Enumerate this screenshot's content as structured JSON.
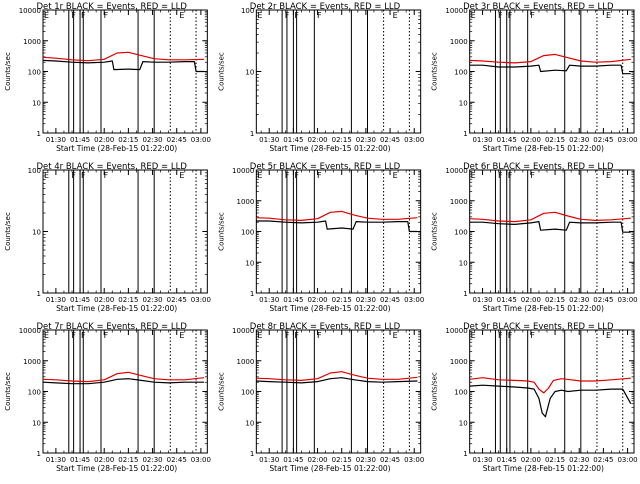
{
  "figure": {
    "xlabel": "Start Time (28-Feb-15 01:22:00)",
    "ylabel": "Counts/sec",
    "x_tick_labels": [
      "01:30",
      "01:45",
      "02:00",
      "02:15",
      "02:30",
      "02:45",
      "03:00"
    ],
    "colors": {
      "events": "#000000",
      "lld": "#e00000",
      "axes": "#000000"
    }
  },
  "chart_data": [
    {
      "type": "line",
      "title": "Det 1r BLACK = Events, RED = LLD",
      "ylog": true,
      "ylim": [
        1,
        10000
      ],
      "y_tick_labels": [
        "1",
        "10",
        "100",
        "1000",
        "10000"
      ],
      "xlim": [
        "01:22",
        "03:04"
      ],
      "flag_labels": [
        {
          "time": "01:22",
          "text": "E"
        },
        {
          "time": "01:39",
          "text": "F"
        },
        {
          "time": "01:45",
          "text": "F"
        },
        {
          "time": "01:59",
          "text": "F"
        },
        {
          "time": "02:46",
          "text": "E"
        }
      ],
      "solid_vlines": [
        "01:38",
        "01:41",
        "01:45",
        "01:47",
        "01:58",
        "02:21",
        "02:31"
      ],
      "dotted_vlines": [
        "02:41",
        "02:57"
      ],
      "series": [
        {
          "name": "Events",
          "x": [
            "01:22",
            "01:30",
            "01:40",
            "01:50",
            "02:00",
            "02:05",
            "02:06",
            "02:15",
            "02:22",
            "02:24",
            "02:31",
            "02:40",
            "02:50",
            "02:56",
            "02:57",
            "03:02"
          ],
          "values": [
            230,
            220,
            200,
            190,
            200,
            220,
            115,
            120,
            115,
            210,
            200,
            200,
            210,
            210,
            100,
            100
          ]
        },
        {
          "name": "LLD",
          "x": [
            "01:22",
            "01:30",
            "01:40",
            "01:50",
            "02:00",
            "02:08",
            "02:15",
            "02:23",
            "02:31",
            "02:40",
            "02:50",
            "03:02"
          ],
          "values": [
            290,
            270,
            240,
            225,
            250,
            400,
            420,
            330,
            260,
            240,
            240,
            250
          ]
        }
      ]
    },
    {
      "type": "line",
      "title": "Det 2r BLACK = Events, RED = LLD",
      "ylog": true,
      "ylim": [
        1,
        100
      ],
      "y_tick_labels": [
        "1",
        "10",
        "100"
      ],
      "xlim": [
        "01:22",
        "03:04"
      ],
      "flag_labels": [
        {
          "time": "01:22",
          "text": "E"
        },
        {
          "time": "01:39",
          "text": "F"
        },
        {
          "time": "01:45",
          "text": "F"
        },
        {
          "time": "01:59",
          "text": "F"
        },
        {
          "time": "02:46",
          "text": "E"
        }
      ],
      "solid_vlines": [
        "01:38",
        "01:41",
        "01:45",
        "01:47",
        "01:58",
        "02:21",
        "02:31"
      ],
      "dotted_vlines": [
        "02:41",
        "02:57"
      ],
      "series": []
    },
    {
      "type": "line",
      "title": "Det 3r BLACK = Events, RED = LLD",
      "ylog": true,
      "ylim": [
        1,
        10000
      ],
      "y_tick_labels": [
        "1",
        "10",
        "100",
        "1000",
        "10000"
      ],
      "xlim": [
        "01:22",
        "03:04"
      ],
      "flag_labels": [
        {
          "time": "01:22",
          "text": "E"
        },
        {
          "time": "01:39",
          "text": "F"
        },
        {
          "time": "01:45",
          "text": "F"
        },
        {
          "time": "01:59",
          "text": "F"
        },
        {
          "time": "02:46",
          "text": "E"
        }
      ],
      "solid_vlines": [
        "01:38",
        "01:41",
        "01:45",
        "01:47",
        "01:58",
        "02:21",
        "02:31"
      ],
      "dotted_vlines": [
        "02:41",
        "02:57"
      ],
      "series": [
        {
          "name": "Events",
          "x": [
            "01:22",
            "01:30",
            "01:40",
            "01:50",
            "02:00",
            "02:05",
            "02:06",
            "02:15",
            "02:22",
            "02:24",
            "02:31",
            "02:40",
            "02:50",
            "02:56",
            "02:57",
            "03:02"
          ],
          "values": [
            160,
            160,
            140,
            140,
            150,
            160,
            100,
            110,
            105,
            160,
            150,
            150,
            160,
            160,
            85,
            85
          ]
        },
        {
          "name": "LLD",
          "x": [
            "01:22",
            "01:30",
            "01:40",
            "01:50",
            "02:00",
            "02:08",
            "02:15",
            "02:23",
            "02:31",
            "02:40",
            "02:50",
            "03:02"
          ],
          "values": [
            230,
            220,
            200,
            190,
            210,
            330,
            360,
            280,
            220,
            200,
            210,
            250
          ]
        }
      ]
    },
    {
      "type": "line",
      "title": "Det 4r BLACK = Events, RED = LLD",
      "ylog": true,
      "ylim": [
        1,
        100
      ],
      "y_tick_labels": [
        "1",
        "10",
        "100"
      ],
      "xlim": [
        "01:22",
        "03:04"
      ],
      "flag_labels": [
        {
          "time": "01:22",
          "text": "E"
        },
        {
          "time": "01:39",
          "text": "F"
        },
        {
          "time": "01:45",
          "text": "F"
        },
        {
          "time": "01:59",
          "text": "F"
        },
        {
          "time": "02:46",
          "text": "E"
        }
      ],
      "solid_vlines": [
        "01:38",
        "01:41",
        "01:45",
        "01:47",
        "01:58",
        "02:21",
        "02:31"
      ],
      "dotted_vlines": [
        "02:41",
        "02:57"
      ],
      "series": []
    },
    {
      "type": "line",
      "title": "Det 5r BLACK = Events, RED = LLD",
      "ylog": true,
      "ylim": [
        1,
        10000
      ],
      "y_tick_labels": [
        "1",
        "10",
        "100",
        "1000",
        "10000"
      ],
      "xlim": [
        "01:22",
        "03:04"
      ],
      "flag_labels": [
        {
          "time": "01:22",
          "text": "E"
        },
        {
          "time": "01:39",
          "text": "F"
        },
        {
          "time": "01:45",
          "text": "F"
        },
        {
          "time": "01:59",
          "text": "F"
        },
        {
          "time": "02:46",
          "text": "E"
        }
      ],
      "solid_vlines": [
        "01:38",
        "01:41",
        "01:45",
        "01:47",
        "01:58",
        "02:21",
        "02:31"
      ],
      "dotted_vlines": [
        "02:41",
        "02:57"
      ],
      "series": [
        {
          "name": "Events",
          "x": [
            "01:22",
            "01:30",
            "01:40",
            "01:50",
            "02:00",
            "02:05",
            "02:06",
            "02:15",
            "02:22",
            "02:24",
            "02:31",
            "02:40",
            "02:50",
            "02:56",
            "02:57",
            "03:02"
          ],
          "values": [
            220,
            220,
            200,
            190,
            200,
            220,
            120,
            130,
            120,
            210,
            200,
            200,
            210,
            210,
            100,
            100
          ]
        },
        {
          "name": "LLD",
          "x": [
            "01:22",
            "01:30",
            "01:40",
            "01:50",
            "02:00",
            "02:08",
            "02:15",
            "02:23",
            "02:31",
            "02:40",
            "02:50",
            "03:02"
          ],
          "values": [
            280,
            270,
            240,
            230,
            260,
            420,
            450,
            340,
            270,
            250,
            250,
            280
          ]
        }
      ]
    },
    {
      "type": "line",
      "title": "Det 6r BLACK = Events, RED = LLD",
      "ylog": true,
      "ylim": [
        1,
        10000
      ],
      "y_tick_labels": [
        "1",
        "10",
        "100",
        "1000",
        "10000"
      ],
      "xlim": [
        "01:22",
        "03:04"
      ],
      "flag_labels": [
        {
          "time": "01:22",
          "text": "E"
        },
        {
          "time": "01:39",
          "text": "F"
        },
        {
          "time": "01:45",
          "text": "F"
        },
        {
          "time": "01:59",
          "text": "F"
        },
        {
          "time": "02:46",
          "text": "E"
        }
      ],
      "solid_vlines": [
        "01:38",
        "01:41",
        "01:45",
        "01:47",
        "01:58",
        "02:21",
        "02:31"
      ],
      "dotted_vlines": [
        "02:41",
        "02:57"
      ],
      "series": [
        {
          "name": "Events",
          "x": [
            "01:22",
            "01:30",
            "01:40",
            "01:50",
            "02:00",
            "02:05",
            "02:06",
            "02:15",
            "02:22",
            "02:24",
            "02:31",
            "02:40",
            "02:50",
            "02:56",
            "02:57",
            "03:02"
          ],
          "values": [
            200,
            200,
            180,
            170,
            190,
            210,
            110,
            120,
            110,
            200,
            190,
            190,
            200,
            200,
            95,
            95
          ]
        },
        {
          "name": "LLD",
          "x": [
            "01:22",
            "01:30",
            "01:40",
            "01:50",
            "02:00",
            "02:08",
            "02:15",
            "02:23",
            "02:31",
            "02:40",
            "02:50",
            "03:02"
          ],
          "values": [
            260,
            250,
            220,
            210,
            240,
            390,
            420,
            320,
            250,
            230,
            240,
            270
          ]
        }
      ]
    },
    {
      "type": "line",
      "title": "Det 7r BLACK = Events, RED = LLD",
      "ylog": true,
      "ylim": [
        1,
        10000
      ],
      "y_tick_labels": [
        "1",
        "10",
        "100",
        "1000",
        "10000"
      ],
      "xlim": [
        "01:22",
        "03:04"
      ],
      "flag_labels": [
        {
          "time": "01:22",
          "text": "E"
        },
        {
          "time": "01:39",
          "text": "F"
        },
        {
          "time": "01:45",
          "text": "F"
        },
        {
          "time": "01:59",
          "text": "F"
        },
        {
          "time": "02:46",
          "text": "E"
        }
      ],
      "solid_vlines": [
        "01:38",
        "01:41",
        "01:45",
        "01:47",
        "01:58",
        "02:21",
        "02:31"
      ],
      "dotted_vlines": [
        "02:41",
        "02:57"
      ],
      "series": [
        {
          "name": "Events",
          "x": [
            "01:22",
            "01:30",
            "01:40",
            "01:50",
            "02:00",
            "02:08",
            "02:15",
            "02:23",
            "02:31",
            "02:40",
            "02:50",
            "03:02"
          ],
          "values": [
            200,
            190,
            180,
            180,
            200,
            250,
            260,
            230,
            200,
            190,
            200,
            200
          ]
        },
        {
          "name": "LLD",
          "x": [
            "01:22",
            "01:30",
            "01:40",
            "01:50",
            "02:00",
            "02:08",
            "02:15",
            "02:23",
            "02:31",
            "02:40",
            "02:50",
            "03:02"
          ],
          "values": [
            250,
            240,
            220,
            210,
            240,
            380,
            420,
            330,
            260,
            240,
            240,
            280
          ]
        }
      ]
    },
    {
      "type": "line",
      "title": "Det 8r BLACK = Events, RED = LLD",
      "ylog": true,
      "ylim": [
        1,
        10000
      ],
      "y_tick_labels": [
        "1",
        "10",
        "100",
        "1000",
        "10000"
      ],
      "xlim": [
        "01:22",
        "03:04"
      ],
      "flag_labels": [
        {
          "time": "01:22",
          "text": "E"
        },
        {
          "time": "01:39",
          "text": "F"
        },
        {
          "time": "01:45",
          "text": "F"
        },
        {
          "time": "01:59",
          "text": "F"
        },
        {
          "time": "02:46",
          "text": "E"
        }
      ],
      "solid_vlines": [
        "01:38",
        "01:41",
        "01:45",
        "01:47",
        "01:58",
        "02:21",
        "02:31"
      ],
      "dotted_vlines": [
        "02:41",
        "02:57"
      ],
      "series": [
        {
          "name": "Events",
          "x": [
            "01:22",
            "01:30",
            "01:40",
            "01:50",
            "02:00",
            "02:08",
            "02:15",
            "02:23",
            "02:31",
            "02:40",
            "02:50",
            "03:02"
          ],
          "values": [
            220,
            210,
            200,
            190,
            210,
            260,
            280,
            240,
            210,
            200,
            210,
            220
          ]
        },
        {
          "name": "LLD",
          "x": [
            "01:22",
            "01:30",
            "01:40",
            "01:50",
            "02:00",
            "02:08",
            "02:15",
            "02:23",
            "02:31",
            "02:40",
            "02:50",
            "03:02"
          ],
          "values": [
            270,
            260,
            240,
            230,
            260,
            400,
            440,
            340,
            270,
            250,
            250,
            290
          ]
        }
      ]
    },
    {
      "type": "line",
      "title": "Det 9r BLACK = Events, RED = LLD",
      "ylog": true,
      "ylim": [
        1,
        10000
      ],
      "y_tick_labels": [
        "1",
        "10",
        "100",
        "1000",
        "10000"
      ],
      "xlim": [
        "01:22",
        "03:04"
      ],
      "flag_labels": [
        {
          "time": "01:22",
          "text": "E"
        },
        {
          "time": "01:39",
          "text": "F"
        },
        {
          "time": "01:45",
          "text": "F"
        },
        {
          "time": "01:59",
          "text": "F"
        },
        {
          "time": "02:46",
          "text": "E"
        }
      ],
      "solid_vlines": [
        "01:38",
        "01:41",
        "01:45",
        "01:47",
        "01:58",
        "02:21",
        "02:31"
      ],
      "dotted_vlines": [
        "02:41",
        "02:57"
      ],
      "series": [
        {
          "name": "Events",
          "x": [
            "01:22",
            "01:30",
            "01:40",
            "01:50",
            "01:58",
            "02:02",
            "02:05",
            "02:07",
            "02:09",
            "02:12",
            "02:15",
            "02:19",
            "02:23",
            "02:31",
            "02:40",
            "02:50",
            "02:57",
            "03:02"
          ],
          "values": [
            150,
            160,
            150,
            140,
            130,
            120,
            60,
            20,
            15,
            60,
            100,
            110,
            100,
            110,
            110,
            120,
            120,
            40
          ]
        },
        {
          "name": "LLD",
          "x": [
            "01:22",
            "01:30",
            "01:40",
            "01:50",
            "01:58",
            "02:02",
            "02:05",
            "02:08",
            "02:11",
            "02:14",
            "02:19",
            "02:25",
            "02:31",
            "02:40",
            "02:50",
            "03:02"
          ],
          "values": [
            250,
            280,
            240,
            230,
            220,
            200,
            120,
            90,
            130,
            230,
            260,
            240,
            220,
            220,
            240,
            270
          ]
        }
      ]
    }
  ]
}
